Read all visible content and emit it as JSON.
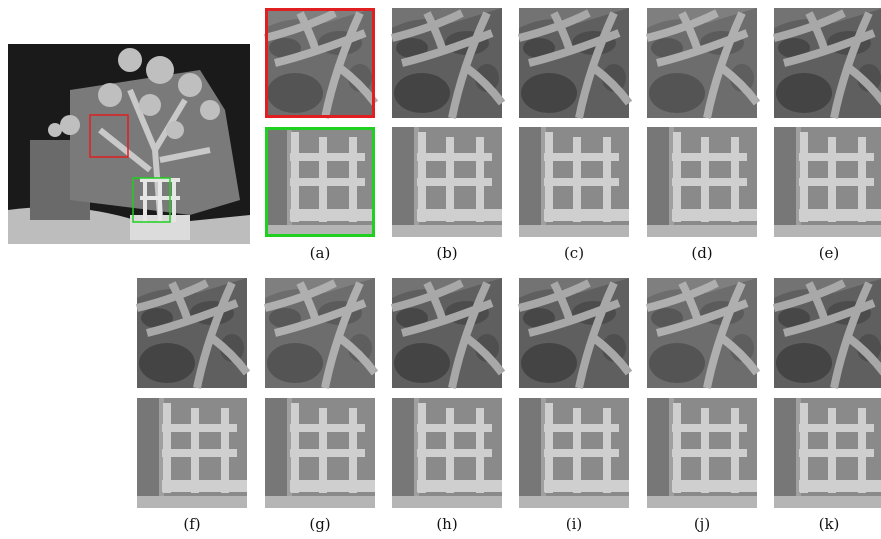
{
  "figure": {
    "labels": [
      "(a)",
      "(b)",
      "(c)",
      "(d)",
      "(e)",
      "(f)",
      "(g)",
      "(h)",
      "(i)",
      "(j)",
      "(k)"
    ]
  }
}
